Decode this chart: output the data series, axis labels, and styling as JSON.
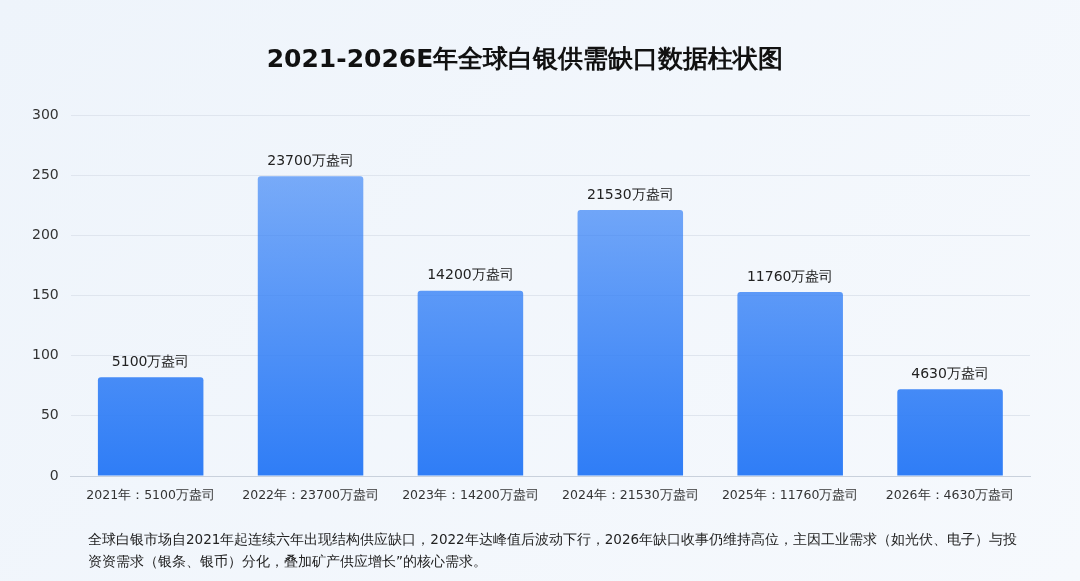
{
  "chart_data": {
    "type": "bar",
    "title": "2021-2026E年全球白银供需缺口数据柱状图",
    "categories": [
      "2021年：5100万盎司",
      "2022年：23700万盎司",
      "2023年：14200万盎司",
      "2024年：21530万盎司",
      "2025年：11760万盎司",
      "2026年：4630万盎司"
    ],
    "values": [
      82,
      249,
      154,
      221,
      153,
      72
    ],
    "color": "#2f7df6",
    "ylim": [
      0,
      300
    ],
    "yticks": [
      0,
      50,
      100,
      150,
      200,
      250,
      300
    ],
    "grid": "y",
    "legend": false,
    "annotations": [
      {
        "text": "5100万盎司",
        "x": "2021年：5100万盎司",
        "y": 82
      },
      {
        "text": "23700万盎司",
        "x": "2022年：23700万盎司",
        "y": 249
      },
      {
        "text": "14200万盎司",
        "x": "2023年：14200万盎司",
        "y": 154
      },
      {
        "text": "21530万盎司",
        "x": "2024年：21530万盎司",
        "y": 221
      },
      {
        "text": "11760万盎司",
        "x": "2025年：11760万盎司",
        "y": 153
      },
      {
        "text": "4630万盎司",
        "x": "2026年：4630万盎司",
        "y": 72
      },
      "全球白银市场自2021年起连续六年出现结构供应缺口，2022年达峰值后波动下行，2026年缺口收事仍维持高位，主因工业需求（如光伏、电子）与投资资需求（银条、银币）分化，叠加矿产供应增长”的核心需求。"
    ]
  }
}
